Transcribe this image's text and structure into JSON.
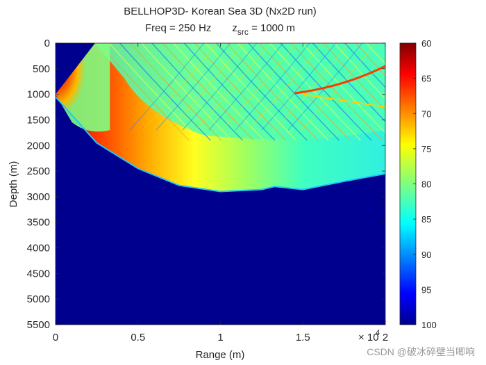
{
  "chart_data": {
    "type": "heatmap",
    "title_line1": "BELLHOP3D- Korean Sea 3D (Nx2D run)",
    "title_line2": {
      "freq_text": "Freq = 250 Hz",
      "zsrc_main": "z",
      "zsrc_sub": "src",
      "zsrc_value": " = 1000 m"
    },
    "xlabel": "Range (m)",
    "ylabel": "Depth (m)",
    "xlim": [
      0,
      2
    ],
    "ylim": [
      0,
      5500
    ],
    "x_exponent_label": "× 10",
    "x_exponent_power": "4",
    "x_ticks": [
      "0",
      "0.5",
      "1",
      "1.5",
      "2"
    ],
    "y_ticks": [
      "0",
      "500",
      "1000",
      "1500",
      "2000",
      "2500",
      "3000",
      "3500",
      "4000",
      "4500",
      "5000",
      "5500"
    ],
    "colorbar": {
      "colormap": "jet",
      "range": [
        60,
        100
      ],
      "reversed": true,
      "ticks": [
        "60",
        "65",
        "70",
        "75",
        "80",
        "85",
        "90",
        "95",
        "100"
      ]
    },
    "background_color": "#00008f",
    "source_depth_m": 1000,
    "bottom_profile_m": {
      "x": [
        0.0,
        0.25,
        0.5,
        0.75,
        1.0,
        1.25,
        1.33,
        1.5,
        1.75,
        2.0
      ],
      "depth": [
        1050,
        1950,
        2450,
        2780,
        2900,
        2860,
        2800,
        2860,
        2700,
        2550
      ]
    }
  },
  "watermark": "CSDN @破冰碎壁当唧响"
}
